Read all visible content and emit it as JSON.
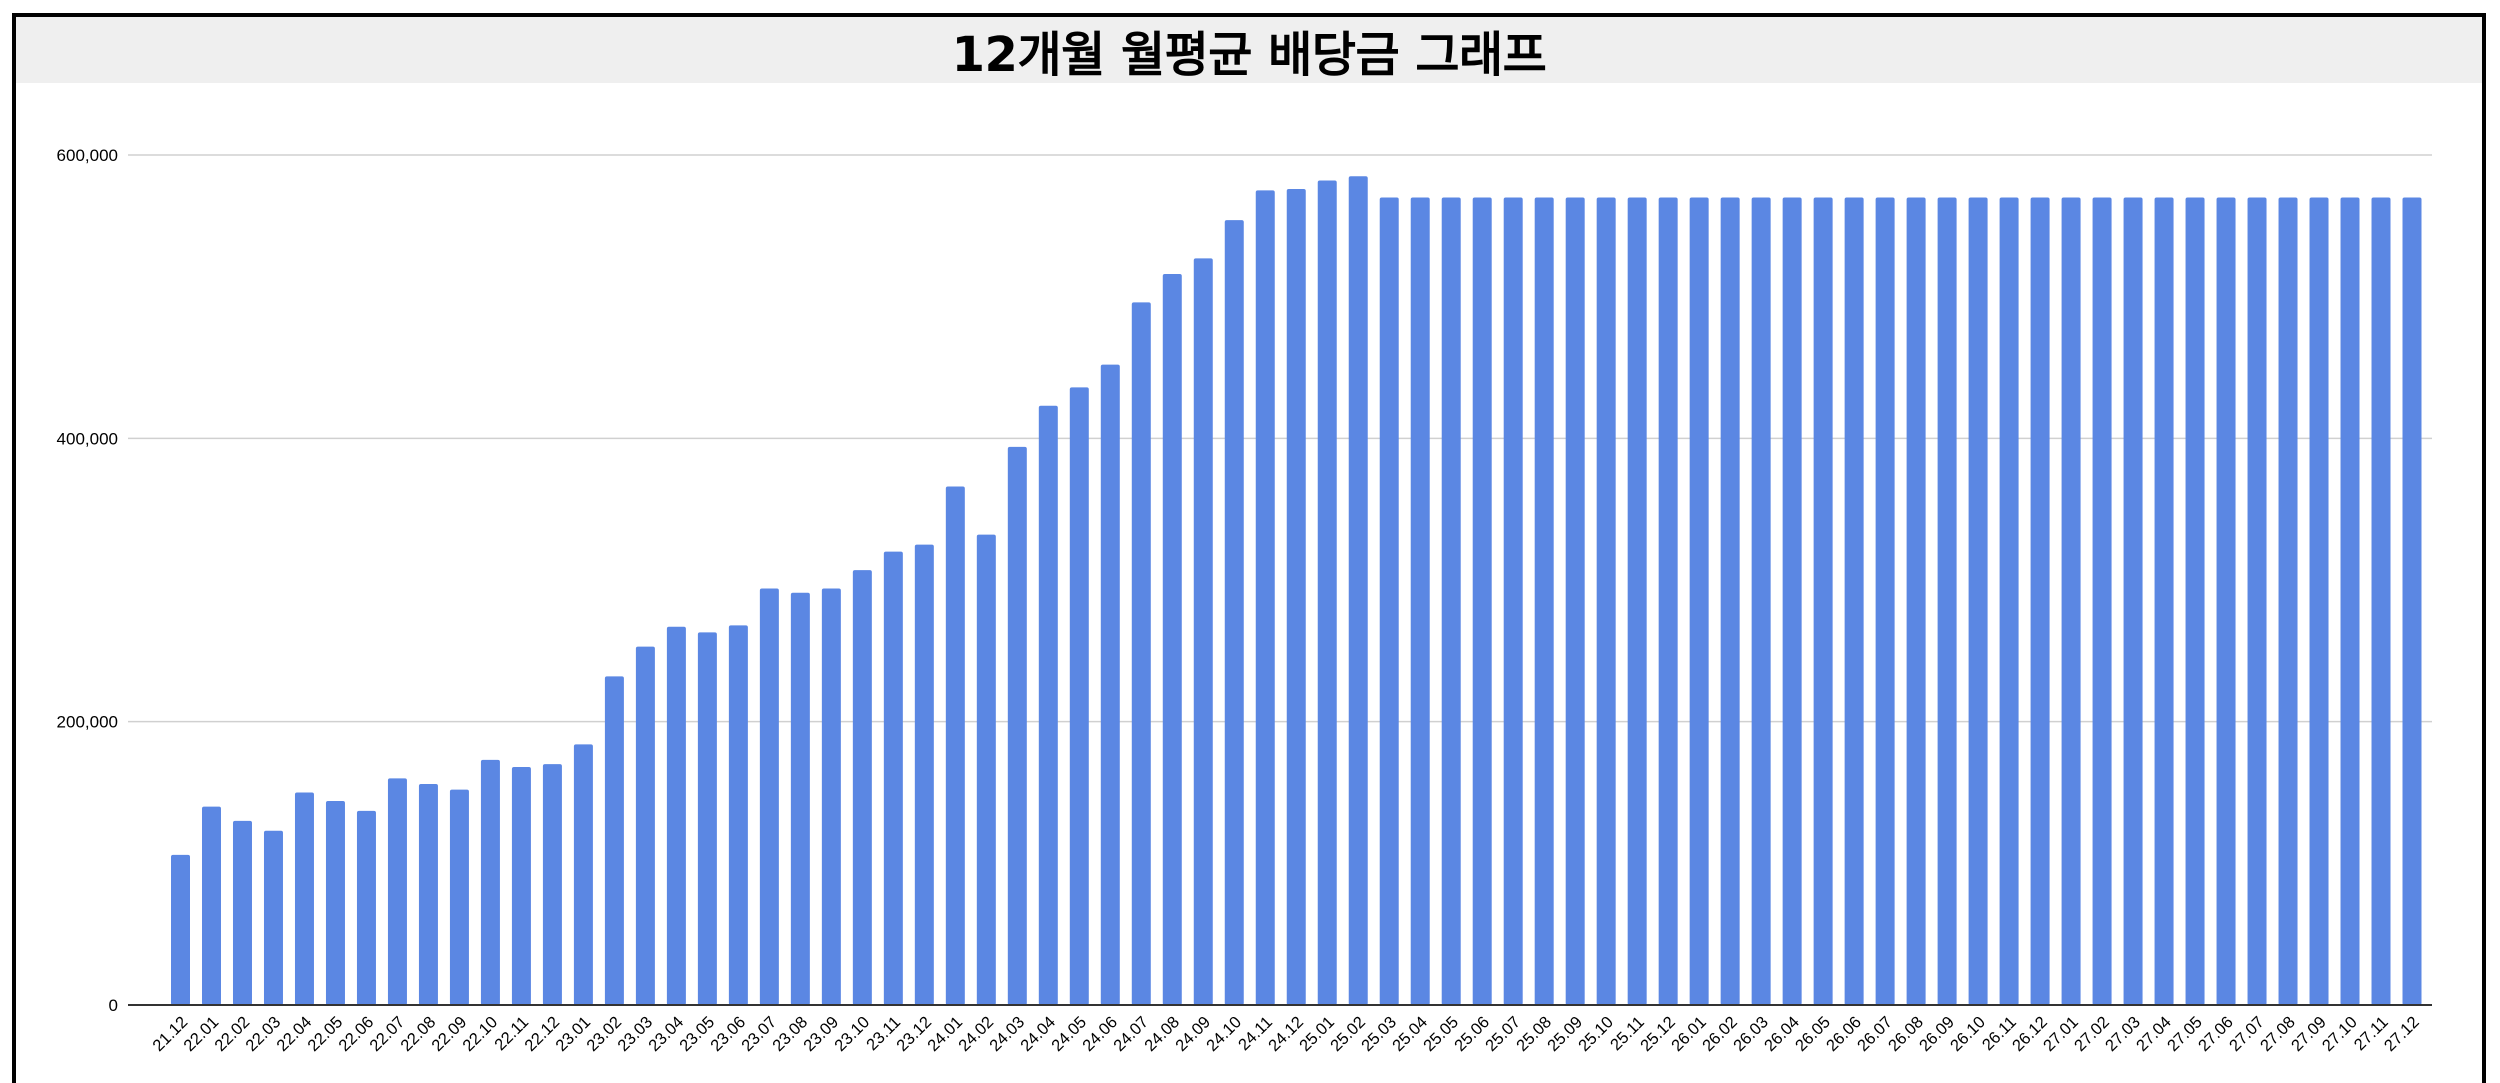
{
  "chart_data": {
    "type": "bar",
    "title": "12개월 월평균 배당금 그래프",
    "xlabel": "",
    "ylabel": "",
    "ylim": [
      0,
      600000
    ],
    "yticks": [
      0,
      200000,
      400000,
      600000
    ],
    "ytick_labels": [
      "0",
      "200,000",
      "400,000",
      "600,000"
    ],
    "grid": true,
    "legend": "none",
    "bar_color": "#5b87e3",
    "categories": [
      "21.12",
      "22.01",
      "22.02",
      "22.03",
      "22.04",
      "22.05",
      "22.06",
      "22.07",
      "22.08",
      "22.09",
      "22.10",
      "22.11",
      "22.12",
      "23.01",
      "23.02",
      "23.03",
      "23.04",
      "23.05",
      "23.06",
      "23.07",
      "23.08",
      "23.09",
      "23.10",
      "23.11",
      "23.12",
      "24.01",
      "24.02",
      "24.03",
      "24.04",
      "24.05",
      "24.06",
      "24.07",
      "24.08",
      "24.09",
      "24.10",
      "24.11",
      "24.12",
      "25.01",
      "25.02",
      "25.03",
      "25.04",
      "25.05",
      "25.06",
      "25.07",
      "25.08",
      "25.09",
      "25.10",
      "25.11",
      "25.12",
      "26.01",
      "26.02",
      "26.03",
      "26.04",
      "26.05",
      "26.06",
      "26.07",
      "26.08",
      "26.09",
      "26.10",
      "26.11",
      "26.12",
      "27.01",
      "27.02",
      "27.03",
      "27.04",
      "27.05",
      "27.06",
      "27.07",
      "27.08",
      "27.09",
      "27.10",
      "27.11",
      "27.12"
    ],
    "values": [
      106000,
      140000,
      130000,
      123000,
      150000,
      144000,
      137000,
      160000,
      156000,
      152000,
      173000,
      168000,
      170000,
      184000,
      232000,
      253000,
      267000,
      263000,
      268000,
      294000,
      291000,
      294000,
      307000,
      320000,
      325000,
      366000,
      332000,
      394000,
      423000,
      436000,
      452000,
      496000,
      516000,
      527000,
      554000,
      575000,
      576000,
      582000,
      585000,
      570000,
      570000,
      570000,
      570000,
      570000,
      570000,
      570000,
      570000,
      570000,
      570000,
      570000,
      570000,
      570000,
      570000,
      570000,
      570000,
      570000,
      570000,
      570000,
      570000,
      570000,
      570000,
      570000,
      570000,
      570000,
      570000,
      570000,
      570000,
      570000,
      570000,
      570000,
      570000,
      570000,
      570000
    ]
  }
}
